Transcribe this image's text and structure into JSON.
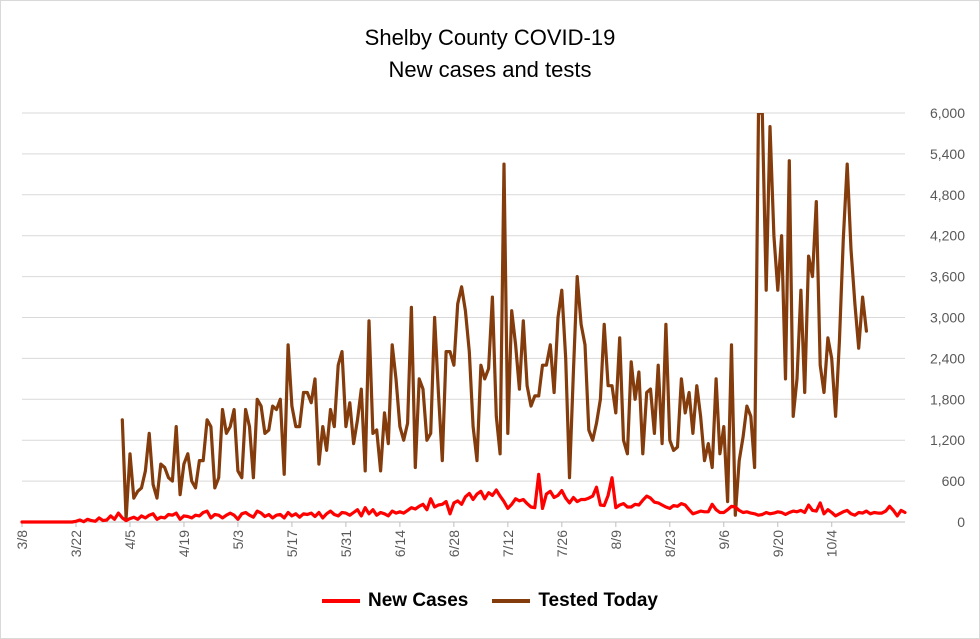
{
  "chart_data": {
    "type": "line",
    "title": "Shelby County COVID-19",
    "subtitle": "New cases and tests",
    "xlabel": "",
    "ylabel": "",
    "ylim": [
      0,
      6000
    ],
    "yticks": [
      "0",
      "600",
      "1,200",
      "1,800",
      "2,400",
      "3,000",
      "3,600",
      "4,200",
      "4,800",
      "5,400",
      "6,000"
    ],
    "xticks": [
      "3/8",
      "3/22",
      "4/5",
      "4/19",
      "5/3",
      "5/17",
      "5/31",
      "6/14",
      "6/28",
      "7/12",
      "7/26",
      "8/9",
      "8/23",
      "9/6",
      "9/20",
      "10/4"
    ],
    "grid": true,
    "legend_position": "bottom",
    "series": [
      {
        "name": "New Cases",
        "color": "#ff0000",
        "values": [
          0,
          0,
          0,
          0,
          0,
          0,
          0,
          0,
          0,
          0,
          0,
          0,
          0,
          0,
          10,
          30,
          5,
          40,
          20,
          10,
          60,
          20,
          30,
          90,
          40,
          130,
          60,
          20,
          50,
          70,
          40,
          90,
          60,
          100,
          120,
          40,
          70,
          60,
          110,
          100,
          130,
          40,
          90,
          80,
          60,
          100,
          90,
          140,
          160,
          60,
          110,
          100,
          60,
          100,
          130,
          100,
          40,
          120,
          140,
          100,
          70,
          160,
          130,
          80,
          110,
          60,
          100,
          110,
          60,
          140,
          90,
          120,
          70,
          120,
          110,
          130,
          80,
          140,
          60,
          120,
          160,
          110,
          90,
          140,
          130,
          100,
          140,
          180,
          90,
          210,
          120,
          180,
          100,
          140,
          120,
          90,
          160,
          130,
          150,
          130,
          170,
          210,
          190,
          230,
          260,
          180,
          340,
          220,
          250,
          260,
          300,
          120,
          280,
          310,
          260,
          370,
          420,
          330,
          410,
          450,
          340,
          430,
          390,
          470,
          380,
          300,
          200,
          260,
          340,
          310,
          330,
          270,
          220,
          210,
          700,
          200,
          410,
          450,
          360,
          390,
          460,
          350,
          280,
          360,
          300,
          330,
          330,
          350,
          380,
          510,
          250,
          240,
          390,
          650,
          210,
          250,
          270,
          220,
          220,
          260,
          250,
          320,
          380,
          350,
          290,
          280,
          250,
          220,
          200,
          240,
          230,
          270,
          250,
          180,
          120,
          140,
          160,
          150,
          150,
          260,
          180,
          140,
          140,
          180,
          230,
          220,
          170,
          140,
          150,
          130,
          120,
          100,
          110,
          140,
          120,
          130,
          150,
          140,
          110,
          140,
          160,
          150,
          170,
          140,
          250,
          170,
          160,
          280,
          120,
          180,
          140,
          90,
          120,
          150,
          170,
          120,
          100,
          140,
          130,
          160,
          120,
          140,
          130,
          130,
          160,
          230,
          170,
          90,
          170,
          140
        ]
      },
      {
        "name": "Tested Today",
        "color": "#843c0c",
        "values": [
          null,
          null,
          null,
          null,
          null,
          null,
          null,
          null,
          null,
          null,
          null,
          null,
          null,
          null,
          null,
          null,
          null,
          null,
          null,
          null,
          null,
          null,
          null,
          null,
          null,
          null,
          1500,
          50,
          1000,
          350,
          450,
          500,
          750,
          1300,
          550,
          350,
          850,
          800,
          650,
          600,
          1400,
          400,
          850,
          1000,
          600,
          500,
          900,
          900,
          1500,
          1400,
          500,
          650,
          1650,
          1300,
          1400,
          1650,
          750,
          650,
          1650,
          1400,
          650,
          1800,
          1700,
          1300,
          1350,
          1700,
          1650,
          1800,
          700,
          2600,
          1700,
          1400,
          1400,
          1900,
          1900,
          1750,
          2100,
          850,
          1400,
          1050,
          1650,
          1400,
          2300,
          2500,
          1400,
          1750,
          1150,
          1500,
          1950,
          750,
          2950,
          1300,
          1350,
          750,
          1600,
          1150,
          2600,
          2100,
          1400,
          1200,
          1450,
          3150,
          800,
          2100,
          1950,
          1200,
          1300,
          3000,
          1900,
          900,
          2500,
          2500,
          2300,
          3200,
          3450,
          3100,
          2500,
          1400,
          900,
          2300,
          2100,
          2250,
          3300,
          1550,
          1000,
          5250,
          1300,
          3100,
          2600,
          1950,
          2950,
          2000,
          1700,
          1850,
          1850,
          2300,
          2300,
          2600,
          1900,
          3000,
          3400,
          2400,
          650,
          2200,
          3600,
          2900,
          2600,
          1350,
          1200,
          1450,
          1800,
          2900,
          2000,
          2000,
          1600,
          2700,
          1200,
          1000,
          2350,
          1800,
          2200,
          1000,
          1900,
          1950,
          1300,
          2300,
          1150,
          2900,
          1200,
          1050,
          1100,
          2100,
          1600,
          1900,
          1300,
          2000,
          1550,
          900,
          1150,
          800,
          2100,
          1000,
          1400,
          300,
          2600,
          100,
          900,
          1250,
          1700,
          1550,
          800,
          6000,
          6000,
          3400,
          5800,
          4200,
          3400,
          4200,
          2100,
          5300,
          1550,
          2100,
          3400,
          1900,
          3900,
          3600,
          4700,
          2300,
          1900,
          2700,
          2400,
          1550,
          2650,
          4150,
          5250,
          4000,
          3200,
          2550,
          3300,
          2800
        ]
      }
    ]
  }
}
